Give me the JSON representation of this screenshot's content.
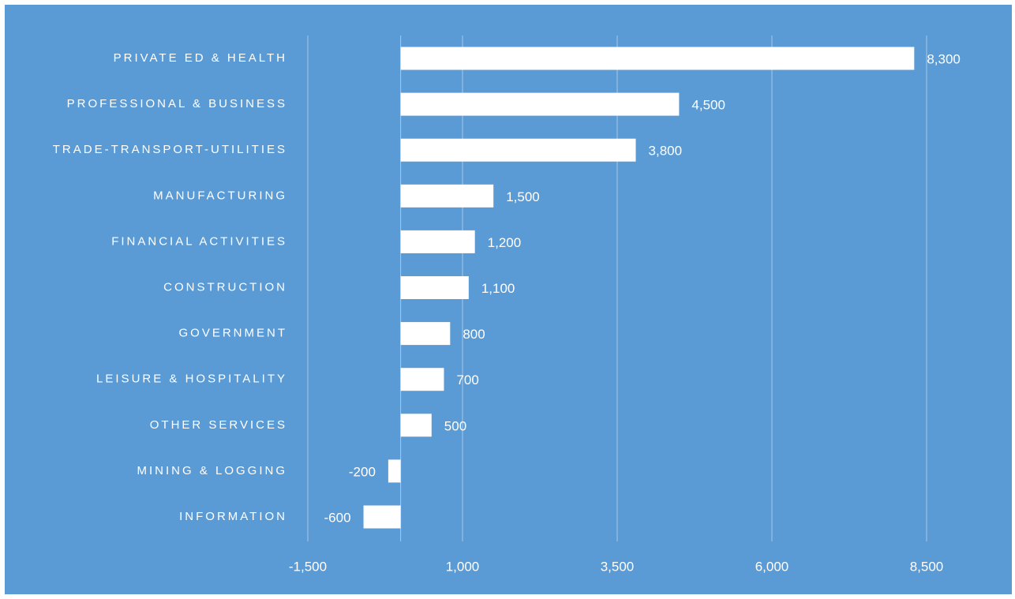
{
  "chart_data": {
    "type": "bar",
    "orientation": "horizontal",
    "categories": [
      "PRIVATE ED & HEALTH",
      "PROFESSIONAL & BUSINESS",
      "TRADE-TRANSPORT-UTILITIES",
      "MANUFACTURING",
      "FINANCIAL ACTIVITIES",
      "CONSTRUCTION",
      "GOVERNMENT",
      "LEISURE & HOSPITALITY",
      "OTHER SERVICES",
      "MINING & LOGGING",
      "INFORMATION"
    ],
    "values": [
      8300,
      4500,
      3800,
      1500,
      1200,
      1100,
      800,
      700,
      500,
      -200,
      -600
    ],
    "value_labels": [
      "8,300",
      "4,500",
      "3,800",
      "1,500",
      "1,200",
      "1,100",
      "800",
      "700",
      "500",
      "-200",
      "-600"
    ],
    "title": "",
    "xlabel": "",
    "ylabel": "",
    "xlim": [
      -1500,
      8500
    ],
    "x_ticks": [
      -1500,
      1000,
      3500,
      6000,
      8500
    ],
    "x_tick_labels": [
      "-1,500",
      "1,000",
      "3,500",
      "6,000",
      "8,500"
    ],
    "grid": true,
    "legend": "none",
    "colors": {
      "background": "#5b9bd5",
      "bar": "#ffffff",
      "text": "#ffffff",
      "gridline": "#a8c7e8"
    }
  }
}
